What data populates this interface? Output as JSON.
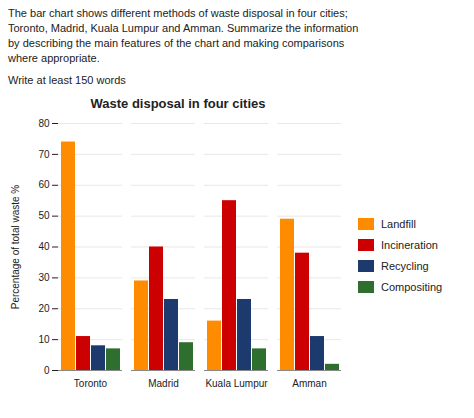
{
  "chart_data": {
    "type": "bar",
    "title": "Waste disposal in four cities",
    "ylabel": "Percentage of total waste %",
    "annotations": [
      "The bar chart shows different methods of waste disposal in four cities;",
      "Toronto, Madrid, Kuala Lumpur and Amman. Summarize the information",
      "by describing the main features of the chart and making comparisons",
      "where appropriate.",
      "Write at least 150 words"
    ],
    "categories": [
      "Toronto",
      "Madrid",
      "Kuala Lumpur",
      "Amman"
    ],
    "series": [
      {
        "name": "Landfill",
        "color": "#FF8C00",
        "values": [
          74,
          29,
          16,
          49
        ]
      },
      {
        "name": "Incineration",
        "color": "#CC0000",
        "values": [
          11,
          40,
          55,
          38
        ]
      },
      {
        "name": "Recycling",
        "color": "#1C3A6E",
        "values": [
          8,
          23,
          23,
          11
        ]
      },
      {
        "name": "Compositing",
        "color": "#2E6E2E",
        "values": [
          7,
          9,
          7,
          2
        ]
      }
    ],
    "ylim": [
      0,
      80
    ],
    "yticks": [
      0,
      10,
      20,
      30,
      40,
      50,
      60,
      70,
      80
    ],
    "grid": true,
    "legend": "right"
  }
}
